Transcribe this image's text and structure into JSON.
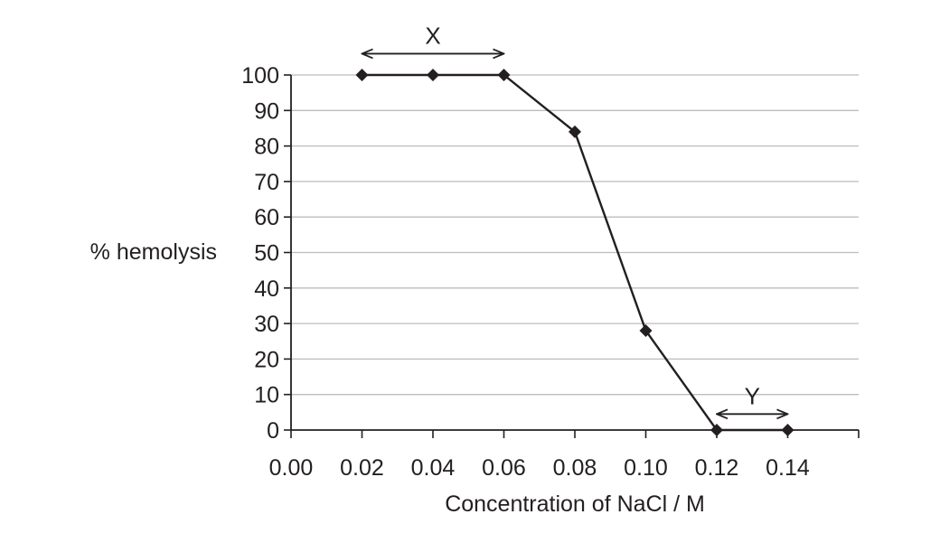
{
  "chart_data": {
    "type": "line",
    "xlabel": "Concentration of NaCl / M",
    "ylabel": "% hemolysis",
    "xlim": [
      0.0,
      0.16
    ],
    "ylim": [
      0,
      100
    ],
    "x_ticks": [
      "0.00",
      "0.02",
      "0.04",
      "0.06",
      "0.08",
      "0.10",
      "0.12",
      "0.14"
    ],
    "y_ticks": [
      "0",
      "10",
      "20",
      "30",
      "40",
      "50",
      "60",
      "70",
      "80",
      "90",
      "100"
    ],
    "grid": "horizontal",
    "series": [
      {
        "x": [
          0.02,
          0.04,
          0.06,
          0.08,
          0.1,
          0.12,
          0.14
        ],
        "values": [
          100,
          100,
          100,
          84,
          28,
          0,
          0
        ],
        "marker": "diamond",
        "color": "#231f20"
      }
    ],
    "annotations": [
      {
        "text": "X",
        "x_range": [
          0.02,
          0.06
        ],
        "y": 106,
        "type": "double-arrow"
      },
      {
        "text": "Y",
        "x_range": [
          0.12,
          0.14
        ],
        "y": 4.5,
        "type": "double-arrow"
      }
    ],
    "colors": {
      "line": "#231f20",
      "grid": "#bdbdbd",
      "axis": "#231f20"
    }
  }
}
